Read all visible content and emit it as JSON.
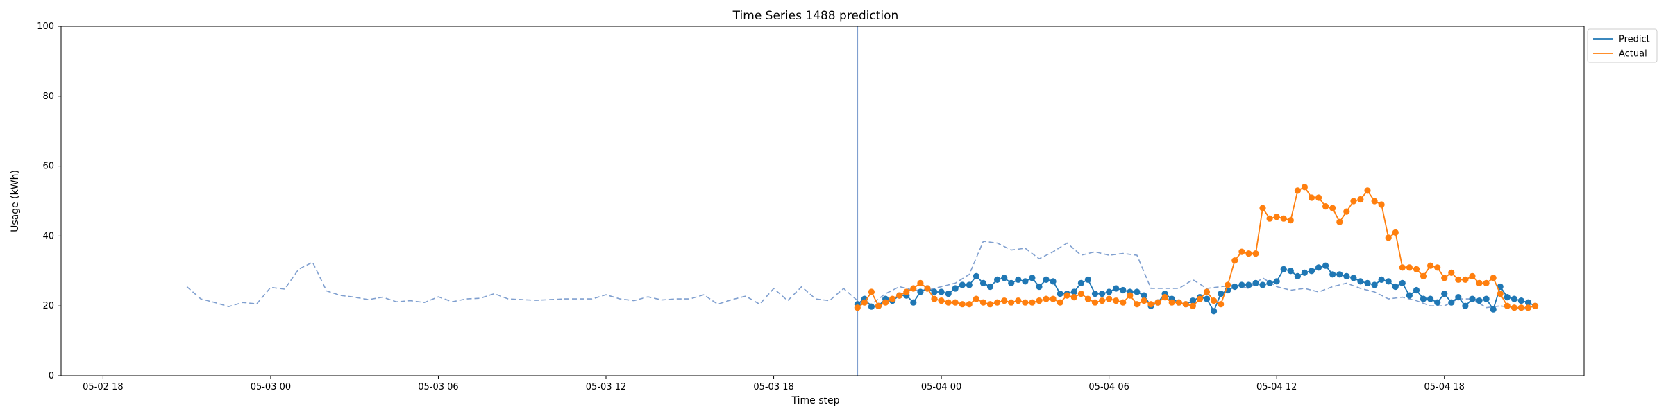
{
  "chart_data": {
    "type": "line",
    "title": "Time Series 1488 prediction",
    "xlabel": "Time step",
    "ylabel": "Usage (kWh)",
    "ylim": [
      0,
      100
    ],
    "yticks": [
      0,
      20,
      40,
      60,
      80,
      100
    ],
    "x_is_hourly_from": "05-02 21:00",
    "xticks": [
      "05-02 18",
      "05-03 00",
      "05-03 06",
      "05-03 12",
      "05-03 18",
      "05-04 00",
      "05-04 06",
      "05-04 12",
      "05-04 18"
    ],
    "forecast_start": "05-03 21:00",
    "grid": false,
    "legend_position": "outside-top-right",
    "colors": {
      "predict": "#1f77b4",
      "actual": "#ff7f0e",
      "history": "#7f9fcf",
      "divider": "#7f9fcf"
    },
    "history": {
      "start": "05-02 21:00",
      "style": "dashed",
      "values": [
        25.5,
        22.0,
        21.0,
        19.8,
        21.0,
        20.6,
        25.3,
        24.8,
        30.5,
        32.5,
        24.3,
        23.0,
        22.5,
        21.8,
        22.5,
        21.2,
        21.5,
        21.0,
        22.6,
        21.2,
        22.0,
        22.2,
        23.5,
        22.0,
        21.8,
        21.6,
        21.8,
        22.0,
        22.0,
        22.0,
        23.2,
        22.0,
        21.5,
        22.6,
        21.7,
        22.0,
        22.0,
        23.2,
        20.5,
        21.8,
        22.8,
        20.5,
        25.0,
        21.5,
        25.5,
        22.0,
        21.5,
        25.0,
        21.5,
        20.5,
        23.5,
        25.5,
        24.5,
        24.5,
        25.5,
        26.5,
        29.0,
        38.5,
        38.0,
        36.0,
        36.5,
        33.5,
        35.5,
        38.0,
        34.5,
        35.5,
        34.5,
        35.0,
        34.5,
        25.0,
        25.0,
        25.0,
        27.5,
        25.0,
        25.5,
        26.0,
        25.0,
        28.0,
        25.5,
        24.5,
        25.0,
        24.0,
        25.5,
        26.5,
        25.0,
        24.0,
        22.0,
        22.5,
        21.5,
        20.0,
        20.0,
        22.0,
        22.0,
        19.5,
        20.0,
        19.5,
        19.0
      ]
    },
    "series": [
      {
        "name": "Predict",
        "start": "05-03 21:00",
        "values": [
          20.5,
          22.0,
          19.8,
          20.0,
          22.0,
          21.5,
          23.0,
          23.0,
          21.0,
          24.0,
          25.0,
          24.0,
          24.0,
          23.5,
          25.0,
          26.0,
          26.0,
          28.5,
          26.5,
          25.5,
          27.5,
          28.0,
          26.5,
          27.5,
          27.0,
          28.0,
          25.5,
          27.5,
          27.0,
          23.5,
          23.5,
          24.0,
          26.5,
          27.5,
          23.5,
          23.5,
          24.0,
          25.0,
          24.5,
          24.0,
          24.0,
          23.0,
          20.0,
          21.0,
          23.5,
          22.0,
          21.0,
          20.5,
          21.5,
          22.5,
          22.0,
          18.5,
          23.5,
          24.5,
          25.5,
          26.0,
          26.0,
          26.5,
          26.0,
          26.5,
          27.0,
          30.5,
          30.0,
          28.5,
          29.5,
          30.0,
          31.0,
          31.5,
          29.0,
          29.0,
          28.5,
          28.0,
          27.0,
          26.5,
          26.0,
          27.5,
          27.0,
          25.5,
          26.5,
          23.0,
          24.5,
          22.0,
          22.0,
          21.0,
          23.5,
          21.0,
          22.5,
          20.0,
          22.0,
          21.5,
          22.0,
          19.0,
          25.5,
          22.5,
          22.0,
          21.5,
          21.0,
          20.0
        ]
      },
      {
        "name": "Actual",
        "start": "05-03 21:00",
        "values": [
          19.5,
          21.0,
          24.0,
          20.0,
          21.0,
          22.0,
          23.0,
          24.0,
          25.0,
          26.5,
          25.0,
          22.0,
          21.5,
          21.0,
          21.0,
          20.5,
          20.5,
          22.0,
          21.0,
          20.5,
          21.0,
          21.5,
          21.0,
          21.5,
          21.0,
          21.0,
          21.5,
          22.0,
          22.0,
          21.0,
          23.0,
          22.5,
          23.5,
          22.0,
          21.0,
          21.5,
          22.0,
          21.5,
          21.0,
          23.0,
          20.5,
          21.5,
          20.5,
          21.0,
          22.5,
          21.0,
          21.0,
          20.5,
          20.0,
          22.0,
          24.0,
          21.5,
          20.5,
          26.0,
          33.0,
          35.5,
          35.0,
          35.0,
          48.0,
          45.0,
          45.5,
          45.0,
          44.5,
          53.0,
          54.0,
          51.0,
          51.0,
          48.5,
          48.0,
          44.0,
          47.0,
          50.0,
          50.5,
          53.0,
          50.0,
          49.0,
          39.5,
          41.0,
          31.0,
          31.0,
          30.5,
          28.5,
          31.5,
          31.0,
          28.0,
          29.5,
          27.5,
          27.5,
          28.5,
          26.5,
          26.5,
          28.0,
          23.5,
          20.0,
          19.5,
          19.5,
          19.5,
          20.0
        ]
      }
    ]
  }
}
